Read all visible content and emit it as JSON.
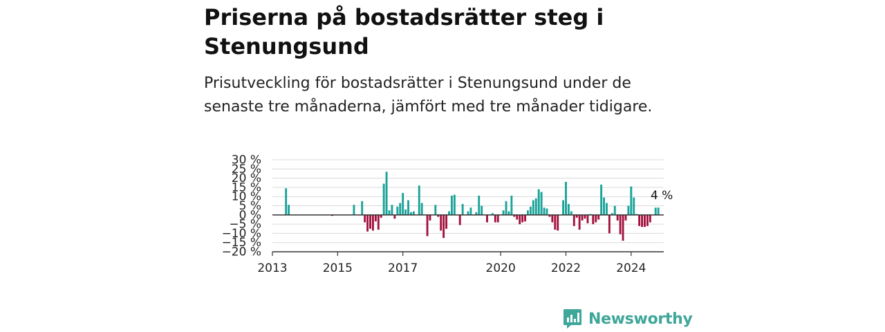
{
  "title": "Priserna på bostadsrätter steg i Stenungsund",
  "subtitle": "Prisutveckling för bostadsrätter i Stenungsund under de senaste tre månaderna, jämfört med tre månader tidigare.",
  "brand": {
    "name": "Newsworthy",
    "color": "#3fa69a",
    "icon": "bar-chart-speech-bubble-icon"
  },
  "chart_data": {
    "type": "bar",
    "x_unit": "month",
    "start": "2013-01",
    "end": "2025-01",
    "ylim": [
      -20,
      30
    ],
    "yticks": [
      "30 %",
      "25 %",
      "20 %",
      "15 %",
      "10 %",
      "5 %",
      "0 %",
      "−5 %",
      "−10 %",
      "−15 %",
      "−20 %"
    ],
    "ytick_values": [
      30,
      25,
      20,
      15,
      10,
      5,
      0,
      -5,
      -10,
      -15,
      -20
    ],
    "xticks": [
      "2013",
      "2015",
      "2017",
      "2020",
      "2022",
      "2024"
    ],
    "xtick_dates": [
      "2013-01",
      "2015-01",
      "2017-01",
      "2020-01",
      "2022-01",
      "2024-01"
    ],
    "grid": true,
    "positive_color": "#1aa39a",
    "negative_color": "#a3123f",
    "end_label": "4 %",
    "series": [
      {
        "values": [
          {
            "date": "2013-06",
            "value": 14.5
          },
          {
            "date": "2013-07",
            "value": 5.5
          },
          {
            "date": "2014-11",
            "value": -0.5
          },
          {
            "date": "2015-07",
            "value": 5.5
          },
          {
            "date": "2015-10",
            "value": 7.5
          },
          {
            "date": "2015-11",
            "value": -4.0
          },
          {
            "date": "2015-12",
            "value": -9.0
          },
          {
            "date": "2016-01",
            "value": -7.5
          },
          {
            "date": "2016-02",
            "value": -8.5
          },
          {
            "date": "2016-03",
            "value": -3.5
          },
          {
            "date": "2016-04",
            "value": -8.0
          },
          {
            "date": "2016-05",
            "value": -1.5
          },
          {
            "date": "2016-06",
            "value": 17.0
          },
          {
            "date": "2016-07",
            "value": 23.5
          },
          {
            "date": "2016-08",
            "value": 2.5
          },
          {
            "date": "2016-09",
            "value": 5.5
          },
          {
            "date": "2016-10",
            "value": -2.0
          },
          {
            "date": "2016-11",
            "value": 4.5
          },
          {
            "date": "2016-12",
            "value": 6.5
          },
          {
            "date": "2017-01",
            "value": 12.0
          },
          {
            "date": "2017-02",
            "value": 3.0
          },
          {
            "date": "2017-03",
            "value": 8.0
          },
          {
            "date": "2017-04",
            "value": 1.5
          },
          {
            "date": "2017-05",
            "value": 2.0
          },
          {
            "date": "2017-07",
            "value": 16.0
          },
          {
            "date": "2017-08",
            "value": 6.5
          },
          {
            "date": "2017-10",
            "value": -11.5
          },
          {
            "date": "2017-11",
            "value": -3.0
          },
          {
            "date": "2018-01",
            "value": 5.5
          },
          {
            "date": "2018-02",
            "value": -1.0
          },
          {
            "date": "2018-03",
            "value": -8.5
          },
          {
            "date": "2018-04",
            "value": -12.5
          },
          {
            "date": "2018-05",
            "value": -7.5
          },
          {
            "date": "2018-06",
            "value": 2.0
          },
          {
            "date": "2018-07",
            "value": 10.5
          },
          {
            "date": "2018-08",
            "value": 11.0
          },
          {
            "date": "2018-10",
            "value": -5.5
          },
          {
            "date": "2018-11",
            "value": 6.0
          },
          {
            "date": "2019-01",
            "value": 2.0
          },
          {
            "date": "2019-02",
            "value": 4.0
          },
          {
            "date": "2019-04",
            "value": 1.5
          },
          {
            "date": "2019-05",
            "value": 10.5
          },
          {
            "date": "2019-06",
            "value": 5.0
          },
          {
            "date": "2019-08",
            "value": -4.0
          },
          {
            "date": "2019-10",
            "value": 1.0
          },
          {
            "date": "2019-11",
            "value": -4.0
          },
          {
            "date": "2019-12",
            "value": -4.0
          },
          {
            "date": "2020-02",
            "value": 2.5
          },
          {
            "date": "2020-03",
            "value": 7.5
          },
          {
            "date": "2020-04",
            "value": 2.0
          },
          {
            "date": "2020-05",
            "value": 10.5
          },
          {
            "date": "2020-06",
            "value": -1.0
          },
          {
            "date": "2020-07",
            "value": -2.5
          },
          {
            "date": "2020-08",
            "value": -5.0
          },
          {
            "date": "2020-09",
            "value": -4.0
          },
          {
            "date": "2020-10",
            "value": -3.5
          },
          {
            "date": "2020-11",
            "value": 2.5
          },
          {
            "date": "2020-12",
            "value": 4.5
          },
          {
            "date": "2021-01",
            "value": 8.0
          },
          {
            "date": "2021-02",
            "value": 9.0
          },
          {
            "date": "2021-03",
            "value": 14.0
          },
          {
            "date": "2021-04",
            "value": 12.5
          },
          {
            "date": "2021-05",
            "value": 4.0
          },
          {
            "date": "2021-06",
            "value": 3.5
          },
          {
            "date": "2021-07",
            "value": -1.0
          },
          {
            "date": "2021-08",
            "value": -4.0
          },
          {
            "date": "2021-09",
            "value": -8.0
          },
          {
            "date": "2021-10",
            "value": -8.5
          },
          {
            "date": "2021-12",
            "value": 8.0
          },
          {
            "date": "2022-01",
            "value": 18.0
          },
          {
            "date": "2022-02",
            "value": 6.0
          },
          {
            "date": "2022-03",
            "value": 2.0
          },
          {
            "date": "2022-04",
            "value": -6.0
          },
          {
            "date": "2022-05",
            "value": -1.5
          },
          {
            "date": "2022-06",
            "value": -8.0
          },
          {
            "date": "2022-07",
            "value": -3.0
          },
          {
            "date": "2022-08",
            "value": -2.0
          },
          {
            "date": "2022-09",
            "value": -4.5
          },
          {
            "date": "2022-10",
            "value": 0.5
          },
          {
            "date": "2022-11",
            "value": -5.0
          },
          {
            "date": "2022-12",
            "value": -4.0
          },
          {
            "date": "2023-01",
            "value": -2.5
          },
          {
            "date": "2023-02",
            "value": 16.5
          },
          {
            "date": "2023-03",
            "value": 9.5
          },
          {
            "date": "2023-04",
            "value": 6.5
          },
          {
            "date": "2023-05",
            "value": -10.0
          },
          {
            "date": "2023-06",
            "value": 1.0
          },
          {
            "date": "2023-07",
            "value": 5.0
          },
          {
            "date": "2023-08",
            "value": -3.0
          },
          {
            "date": "2023-09",
            "value": -10.5
          },
          {
            "date": "2023-10",
            "value": -14.0
          },
          {
            "date": "2023-11",
            "value": -3.0
          },
          {
            "date": "2023-12",
            "value": 5.0
          },
          {
            "date": "2024-01",
            "value": 15.5
          },
          {
            "date": "2024-02",
            "value": 9.5
          },
          {
            "date": "2024-03",
            "value": 0.5
          },
          {
            "date": "2024-04",
            "value": -6.0
          },
          {
            "date": "2024-05",
            "value": -6.5
          },
          {
            "date": "2024-06",
            "value": -6.5
          },
          {
            "date": "2024-07",
            "value": -6.0
          },
          {
            "date": "2024-08",
            "value": -4.0
          },
          {
            "date": "2024-10",
            "value": 4.0
          },
          {
            "date": "2024-11",
            "value": 4.0
          }
        ]
      }
    ]
  }
}
